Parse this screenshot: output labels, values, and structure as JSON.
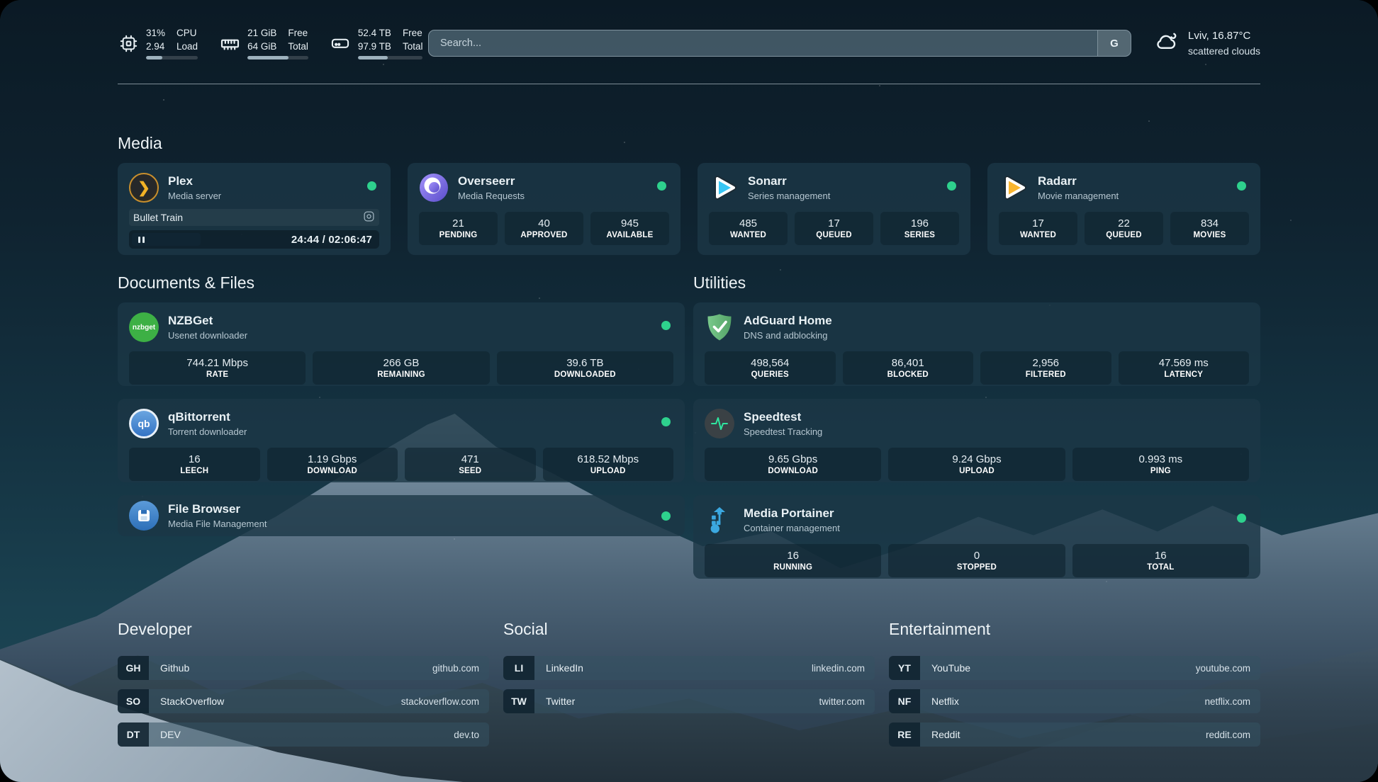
{
  "header": {
    "stats": [
      {
        "icon": "cpu-icon",
        "values": [
          "31%",
          "2.94"
        ],
        "labels": [
          "CPU",
          "Load"
        ],
        "progress_pct": 31
      },
      {
        "icon": "memory-icon",
        "values": [
          "21 GiB",
          "64 GiB"
        ],
        "labels": [
          "Free",
          "Total"
        ],
        "progress_pct": 67
      },
      {
        "icon": "disk-icon",
        "values": [
          "52.4 TB",
          "97.9 TB"
        ],
        "labels": [
          "Free",
          "Total"
        ],
        "progress_pct": 46
      }
    ],
    "search": {
      "placeholder": "Search...",
      "engine_button": "G"
    },
    "weather": {
      "icon": "cloud-icon",
      "location_temperature": "Lviv, 16.87°C",
      "condition": "scattered clouds"
    }
  },
  "sections": {
    "media": {
      "heading": "Media",
      "plex": {
        "icon": "plex-icon",
        "title": "Plex",
        "subtitle": "Media server",
        "now_playing": "Bullet Train",
        "elapsed_total": "24:44 / 02:06:47"
      },
      "overseerr": {
        "icon": "overseerr-icon",
        "title": "Overseerr",
        "subtitle": "Media Requests",
        "stats": [
          {
            "value": "21",
            "label": "PENDING"
          },
          {
            "value": "40",
            "label": "APPROVED"
          },
          {
            "value": "945",
            "label": "AVAILABLE"
          }
        ]
      },
      "sonarr": {
        "icon": "sonarr-icon",
        "title": "Sonarr",
        "subtitle": "Series management",
        "stats": [
          {
            "value": "485",
            "label": "WANTED"
          },
          {
            "value": "17",
            "label": "QUEUED"
          },
          {
            "value": "196",
            "label": "SERIES"
          }
        ]
      },
      "radarr": {
        "icon": "radarr-icon",
        "title": "Radarr",
        "subtitle": "Movie management",
        "stats": [
          {
            "value": "17",
            "label": "WANTED"
          },
          {
            "value": "22",
            "label": "QUEUED"
          },
          {
            "value": "834",
            "label": "MOVIES"
          }
        ]
      }
    },
    "documents": {
      "heading": "Documents & Files",
      "nzbget": {
        "icon": "nzbget-icon",
        "title": "NZBGet",
        "subtitle": "Usenet downloader",
        "stats": [
          {
            "value": "744.21 Mbps",
            "label": "RATE"
          },
          {
            "value": "266 GB",
            "label": "REMAINING"
          },
          {
            "value": "39.6 TB",
            "label": "DOWNLOADED"
          }
        ]
      },
      "qbittorrent": {
        "icon": "qbittorrent-icon",
        "title": "qBittorrent",
        "subtitle": "Torrent downloader",
        "stats": [
          {
            "value": "16",
            "label": "LEECH"
          },
          {
            "value": "1.19 Gbps",
            "label": "DOWNLOAD"
          },
          {
            "value": "471",
            "label": "SEED"
          },
          {
            "value": "618.52 Mbps",
            "label": "UPLOAD"
          }
        ]
      },
      "filebrowser": {
        "icon": "filebrowser-icon",
        "title": "File Browser",
        "subtitle": "Media File Management"
      }
    },
    "utilities": {
      "heading": "Utilities",
      "adguard": {
        "icon": "adguard-icon",
        "title": "AdGuard Home",
        "subtitle": "DNS and adblocking",
        "stats": [
          {
            "value": "498,564",
            "label": "QUERIES"
          },
          {
            "value": "86,401",
            "label": "BLOCKED"
          },
          {
            "value": "2,956",
            "label": "FILTERED"
          },
          {
            "value": "47.569 ms",
            "label": "LATENCY"
          }
        ]
      },
      "speedtest": {
        "icon": "speedtest-icon",
        "title": "Speedtest",
        "subtitle": "Speedtest Tracking",
        "stats": [
          {
            "value": "9.65 Gbps",
            "label": "DOWNLOAD"
          },
          {
            "value": "9.24 Gbps",
            "label": "UPLOAD"
          },
          {
            "value": "0.993 ms",
            "label": "PING"
          }
        ]
      },
      "portainer": {
        "icon": "portainer-icon",
        "title": "Media Portainer",
        "subtitle": "Container management",
        "stats": [
          {
            "value": "16",
            "label": "RUNNING"
          },
          {
            "value": "0",
            "label": "STOPPED"
          },
          {
            "value": "16",
            "label": "TOTAL"
          }
        ]
      }
    }
  },
  "bookmarks": {
    "developer": {
      "heading": "Developer",
      "links": [
        {
          "abbr": "GH",
          "name": "Github",
          "url": "github.com"
        },
        {
          "abbr": "SO",
          "name": "StackOverflow",
          "url": "stackoverflow.com"
        },
        {
          "abbr": "DT",
          "name": "DEV",
          "url": "dev.to"
        }
      ]
    },
    "social": {
      "heading": "Social",
      "links": [
        {
          "abbr": "LI",
          "name": "LinkedIn",
          "url": "linkedin.com"
        },
        {
          "abbr": "TW",
          "name": "Twitter",
          "url": "twitter.com"
        }
      ]
    },
    "entertainment": {
      "heading": "Entertainment",
      "links": [
        {
          "abbr": "YT",
          "name": "YouTube",
          "url": "youtube.com"
        },
        {
          "abbr": "NF",
          "name": "Netflix",
          "url": "netflix.com"
        },
        {
          "abbr": "RE",
          "name": "Reddit",
          "url": "reddit.com"
        }
      ]
    }
  },
  "colors": {
    "status_online": "#2ed18d",
    "card_background": "#1c3746",
    "accent_plex": "#f2b226"
  }
}
